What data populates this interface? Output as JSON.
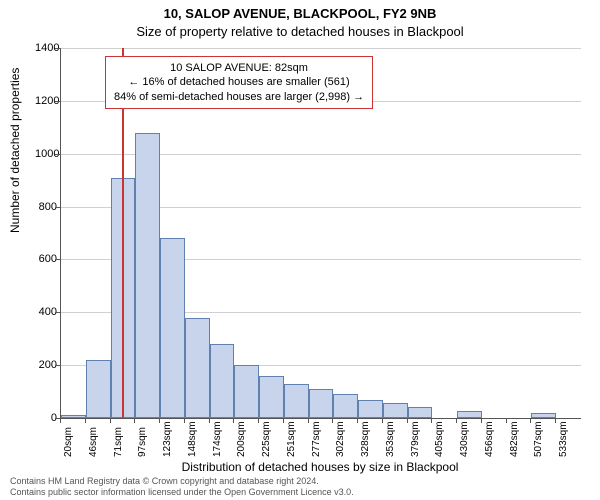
{
  "title_main": "10, SALOP AVENUE, BLACKPOOL, FY2 9NB",
  "title_sub": "Size of property relative to detached houses in Blackpool",
  "y_label": "Number of detached properties",
  "x_label": "Distribution of detached houses by size in Blackpool",
  "chart": {
    "type": "histogram",
    "ylim": [
      0,
      1400
    ],
    "ytick_step": 200,
    "yticks": [
      0,
      200,
      400,
      600,
      800,
      1000,
      1200,
      1400
    ],
    "x_categories": [
      "20sqm",
      "46sqm",
      "71sqm",
      "97sqm",
      "123sqm",
      "148sqm",
      "174sqm",
      "200sqm",
      "225sqm",
      "251sqm",
      "277sqm",
      "302sqm",
      "328sqm",
      "353sqm",
      "379sqm",
      "405sqm",
      "430sqm",
      "456sqm",
      "482sqm",
      "507sqm",
      "533sqm"
    ],
    "bar_values": [
      10,
      220,
      910,
      1080,
      680,
      380,
      280,
      200,
      160,
      130,
      110,
      90,
      70,
      55,
      40,
      0,
      25,
      0,
      0,
      20,
      0
    ],
    "bar_fill": "#c7d4ec",
    "bar_stroke": "#6080b0",
    "grid_color": "#d0d0d0",
    "marker_value": 82,
    "marker_color": "#cc3333",
    "x_range": [
      20,
      546
    ]
  },
  "annotation": {
    "line1": "10 SALOP AVENUE: 82sqm",
    "line2": "← 16% of detached houses are smaller (561)",
    "line3": "84% of semi-detached houses are larger (2,998) →",
    "border_color": "#cc3333"
  },
  "footer": {
    "line1": "Contains HM Land Registry data © Crown copyright and database right 2024.",
    "line2": "Contains public sector information licensed under the Open Government Licence v3.0."
  }
}
